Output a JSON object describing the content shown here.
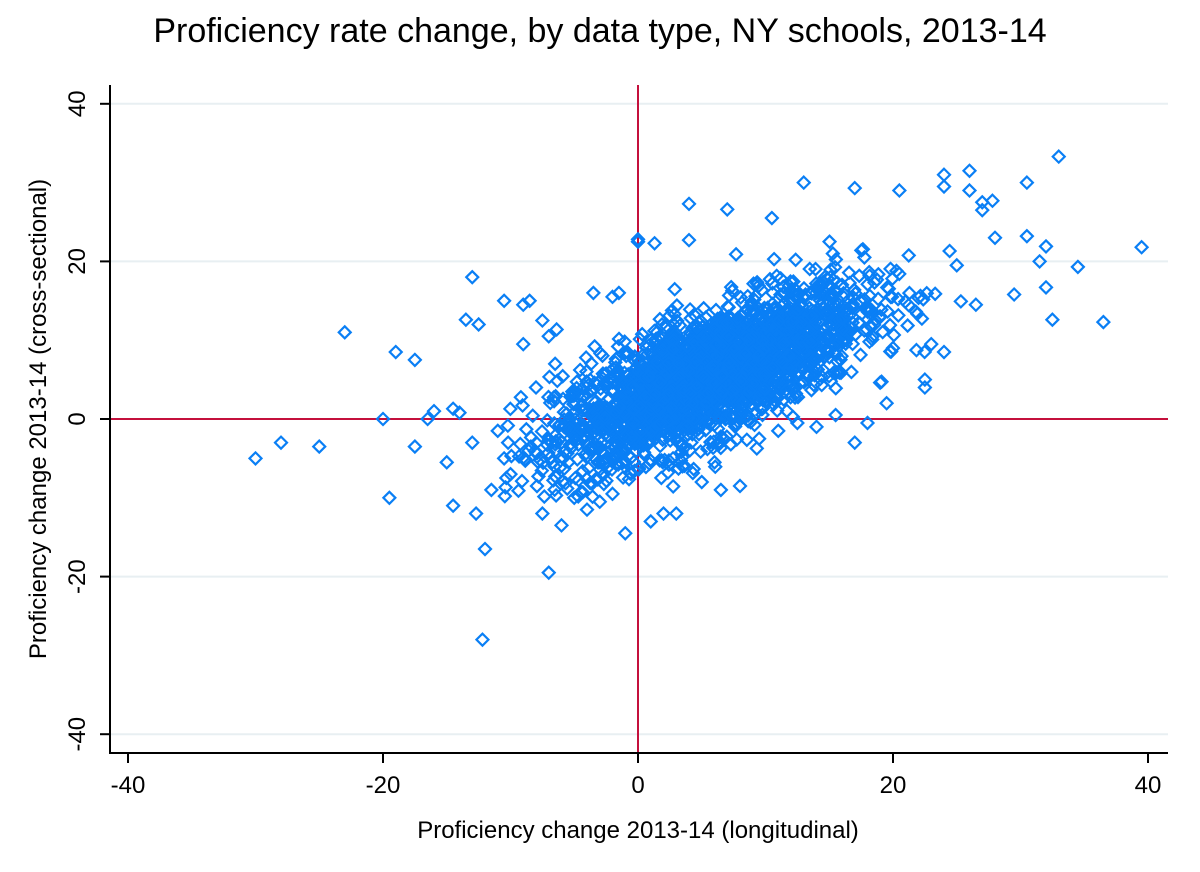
{
  "chart_data": {
    "type": "scatter",
    "title": "Proficiency rate change, by data type, NY schools, 2013-14",
    "xlabel": "Proficiency change 2013-14 (longitudinal)",
    "ylabel": "Proficiency change 2013-14 (cross-sectional)",
    "xlim": [
      -42,
      41.5
    ],
    "ylim": [
      -42,
      42
    ],
    "xticks": [
      -40,
      -20,
      0,
      20,
      40
    ],
    "yticks": [
      -40,
      -20,
      0,
      20,
      40
    ],
    "xtick_labels": [
      "-40",
      "-20",
      "0",
      "20",
      "40"
    ],
    "ytick_labels": [
      "-40",
      "-20",
      "0",
      "20",
      "40"
    ],
    "grid": "horizontal",
    "reference_lines": {
      "x": 0,
      "y": 0
    },
    "marker": "hollow-diamond",
    "colors": {
      "marker": "#0a7ff5",
      "reference": "#c4103c",
      "grid": "#e8eff2",
      "axis": "#000000"
    },
    "cloud": {
      "n": 2600,
      "mean_x": 5.5,
      "mean_y": 5.5,
      "sd_x": 6.0,
      "sd_y": 5.6,
      "correlation": 0.72
    },
    "outliers": [
      [
        -30,
        -5
      ],
      [
        -28,
        -3
      ],
      [
        -25,
        -3.5
      ],
      [
        -23,
        11
      ],
      [
        -20,
        0
      ],
      [
        -19.5,
        -10
      ],
      [
        -19,
        8.5
      ],
      [
        -17.5,
        7.5
      ],
      [
        -17.5,
        -3.5
      ],
      [
        -16,
        1
      ],
      [
        -16.5,
        0
      ],
      [
        -15,
        -5.5
      ],
      [
        -14.5,
        -11
      ],
      [
        -14.5,
        1.3
      ],
      [
        -14,
        0.8
      ],
      [
        -13.5,
        12.6
      ],
      [
        -13,
        18
      ],
      [
        -13,
        -3
      ],
      [
        -12.7,
        -12
      ],
      [
        -12.5,
        12
      ],
      [
        -12.2,
        -28
      ],
      [
        -12,
        -16.5
      ],
      [
        -11.5,
        -9
      ],
      [
        -11,
        -1.5
      ],
      [
        -10.5,
        15
      ],
      [
        -10.5,
        -5
      ],
      [
        -10,
        -7
      ],
      [
        -9,
        14.5
      ],
      [
        -8.5,
        15
      ],
      [
        -7.5,
        12.5
      ],
      [
        -7.5,
        -12
      ],
      [
        -7,
        -19.5
      ],
      [
        -7,
        10.5
      ],
      [
        -6,
        -13.5
      ],
      [
        -5,
        -10
      ],
      [
        -4,
        -11.5
      ],
      [
        -3,
        -10.5
      ],
      [
        -2,
        -9.5
      ],
      [
        -1,
        -14.5
      ],
      [
        0,
        22.5
      ],
      [
        0,
        22.8
      ],
      [
        1.3,
        22.3
      ],
      [
        1,
        -13
      ],
      [
        2,
        -12
      ],
      [
        3,
        -12
      ],
      [
        4,
        27.3
      ],
      [
        4,
        22.7
      ],
      [
        7,
        26.6
      ],
      [
        10.5,
        25.5
      ],
      [
        8,
        -8.5
      ],
      [
        13,
        30
      ],
      [
        17,
        29.3
      ],
      [
        17,
        -3
      ],
      [
        19.5,
        2
      ],
      [
        22.5,
        4
      ],
      [
        22.5,
        5
      ],
      [
        20.5,
        29
      ],
      [
        24,
        31
      ],
      [
        24,
        29.5
      ],
      [
        26,
        31.5
      ],
      [
        26,
        29
      ],
      [
        27,
        27.5
      ],
      [
        27.8,
        27.7
      ],
      [
        28,
        23
      ],
      [
        29.5,
        15.8
      ],
      [
        30.5,
        23.2
      ],
      [
        30.5,
        30
      ],
      [
        31.5,
        20
      ],
      [
        32,
        21.9
      ],
      [
        32,
        16.7
      ],
      [
        32.5,
        12.6
      ],
      [
        33,
        33.3
      ],
      [
        34.5,
        19.3
      ],
      [
        36.5,
        12.3
      ],
      [
        39.5,
        21.8
      ],
      [
        25,
        19.5
      ],
      [
        26.5,
        14.5
      ],
      [
        27,
        26.5
      ],
      [
        23,
        9.5
      ],
      [
        24,
        8.5
      ],
      [
        20,
        9
      ],
      [
        18,
        -0.5
      ],
      [
        15.5,
        0.5
      ],
      [
        14,
        -1
      ],
      [
        11,
        -1.5
      ],
      [
        12.5,
        -0.5
      ],
      [
        9.5,
        -2.5
      ],
      [
        6,
        -5.5
      ],
      [
        6.5,
        -9
      ],
      [
        5,
        -8
      ],
      [
        3.5,
        -6
      ],
      [
        -3.5,
        16
      ],
      [
        -2,
        15.5
      ],
      [
        -1.5,
        16
      ],
      [
        -6.5,
        7
      ],
      [
        -9,
        9.5
      ],
      [
        -8,
        4
      ]
    ]
  }
}
